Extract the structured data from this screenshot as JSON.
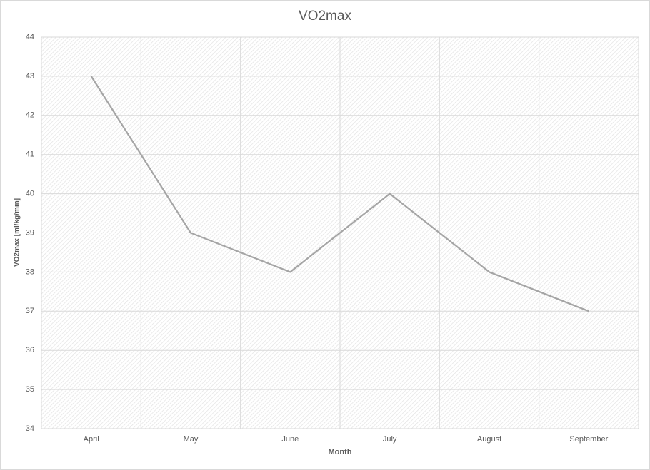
{
  "chart_data": {
    "type": "line",
    "title": "VO2max",
    "x_label": "Month",
    "y_label": "VO2max [ml/kg/min]",
    "categories": [
      "April",
      "May",
      "June",
      "July",
      "August",
      "September"
    ],
    "values": [
      43,
      39,
      38,
      40,
      38,
      37
    ],
    "color": "#a5a5a5",
    "ylim": [
      34,
      44
    ],
    "yticks": [
      34,
      35,
      36,
      37,
      38,
      39,
      40,
      41,
      42,
      43,
      44
    ],
    "grid": true
  }
}
